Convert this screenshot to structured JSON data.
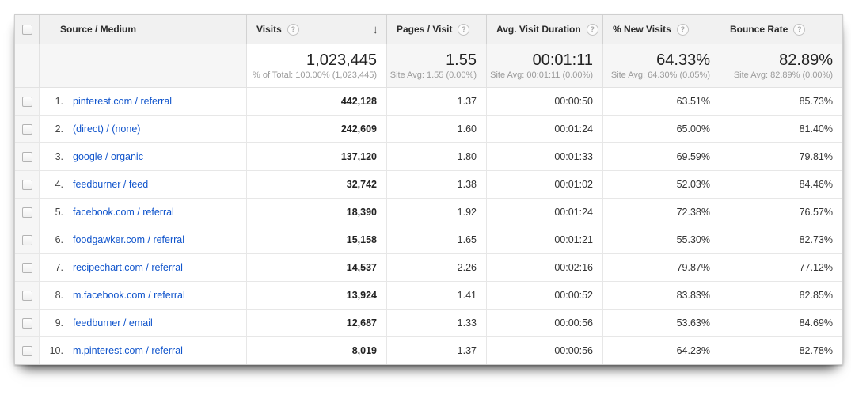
{
  "icons": {
    "help": "?",
    "sort_desc": "↓"
  },
  "colors": {
    "link": "#1155cc",
    "header_bg": "#f1f1f1",
    "summary_bg": "#f6f6f6",
    "border": "#e7e7e7",
    "sub_text": "#9b9b9b"
  },
  "table": {
    "columns": [
      {
        "label": "Source / Medium"
      },
      {
        "label": "Visits",
        "sorted": "desc"
      },
      {
        "label": "Pages / Visit"
      },
      {
        "label": "Avg. Visit Duration"
      },
      {
        "label": "% New Visits"
      },
      {
        "label": "Bounce Rate"
      }
    ],
    "summary": {
      "visits": "1,023,445",
      "visits_sub": "% of Total: 100.00% (1,023,445)",
      "pages": "1.55",
      "pages_sub": "Site Avg: 1.55 (0.00%)",
      "duration": "00:01:11",
      "duration_sub": "Site Avg: 00:01:11 (0.00%)",
      "new_visits": "64.33%",
      "new_visits_sub": "Site Avg: 64.30% (0.05%)",
      "bounce": "82.89%",
      "bounce_sub": "Site Avg: 82.89% (0.00%)"
    },
    "rows": [
      {
        "rank": "1.",
        "source": "pinterest.com / referral",
        "visits": "442,128",
        "pages": "1.37",
        "duration": "00:00:50",
        "new_visits": "63.51%",
        "bounce": "85.73%"
      },
      {
        "rank": "2.",
        "source": "(direct) / (none)",
        "visits": "242,609",
        "pages": "1.60",
        "duration": "00:01:24",
        "new_visits": "65.00%",
        "bounce": "81.40%"
      },
      {
        "rank": "3.",
        "source": "google / organic",
        "visits": "137,120",
        "pages": "1.80",
        "duration": "00:01:33",
        "new_visits": "69.59%",
        "bounce": "79.81%"
      },
      {
        "rank": "4.",
        "source": "feedburner / feed",
        "visits": "32,742",
        "pages": "1.38",
        "duration": "00:01:02",
        "new_visits": "52.03%",
        "bounce": "84.46%"
      },
      {
        "rank": "5.",
        "source": "facebook.com / referral",
        "visits": "18,390",
        "pages": "1.92",
        "duration": "00:01:24",
        "new_visits": "72.38%",
        "bounce": "76.57%"
      },
      {
        "rank": "6.",
        "source": "foodgawker.com / referral",
        "visits": "15,158",
        "pages": "1.65",
        "duration": "00:01:21",
        "new_visits": "55.30%",
        "bounce": "82.73%"
      },
      {
        "rank": "7.",
        "source": "recipechart.com / referral",
        "visits": "14,537",
        "pages": "2.26",
        "duration": "00:02:16",
        "new_visits": "79.87%",
        "bounce": "77.12%"
      },
      {
        "rank": "8.",
        "source": "m.facebook.com / referral",
        "visits": "13,924",
        "pages": "1.41",
        "duration": "00:00:52",
        "new_visits": "83.83%",
        "bounce": "82.85%"
      },
      {
        "rank": "9.",
        "source": "feedburner / email",
        "visits": "12,687",
        "pages": "1.33",
        "duration": "00:00:56",
        "new_visits": "53.63%",
        "bounce": "84.69%"
      },
      {
        "rank": "10.",
        "source": "m.pinterest.com / referral",
        "visits": "8,019",
        "pages": "1.37",
        "duration": "00:00:56",
        "new_visits": "64.23%",
        "bounce": "82.78%"
      }
    ]
  }
}
